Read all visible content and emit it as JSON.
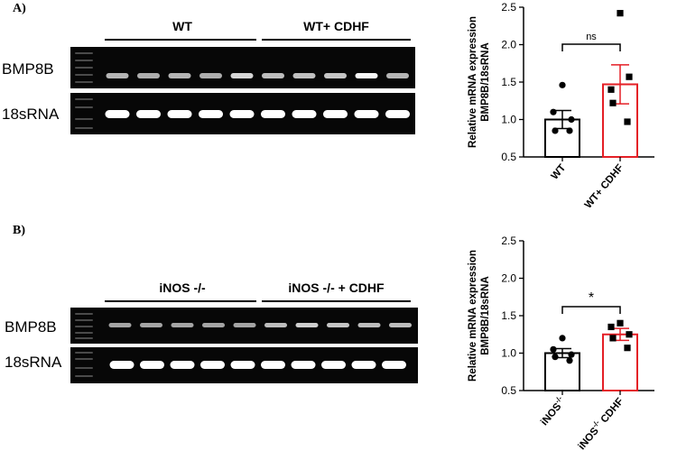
{
  "panels": [
    {
      "label": "A)",
      "groups": [
        "WT",
        "WT+ CDHF"
      ],
      "rows": [
        "BMP8B",
        "18sRNA"
      ],
      "bmp_intensity": [
        0.55,
        0.5,
        0.55,
        0.5,
        0.75,
        0.6,
        0.62,
        0.65,
        0.95,
        0.55
      ],
      "rna_intensity": [
        1,
        1,
        1,
        1,
        1,
        1,
        1,
        1,
        1,
        1
      ],
      "rna_lanes": 10
    },
    {
      "label": "B)",
      "groups": [
        "iNOS -/-",
        "iNOS -/- + CDHF"
      ],
      "rows": [
        "BMP8B",
        "18sRNA"
      ],
      "bmp_intensity": [
        0.45,
        0.45,
        0.45,
        0.45,
        0.45,
        0.6,
        0.7,
        0.65,
        0.6,
        0.6
      ],
      "rna_intensity": [
        1,
        1,
        1,
        1,
        1,
        1,
        1,
        1,
        1,
        1
      ],
      "rna_lanes": 10
    }
  ],
  "chart_data": [
    {
      "type": "bar",
      "ylabel_lines": [
        "Relative mRNA expression",
        "BMP8B/18sRNA"
      ],
      "ylim": [
        0.5,
        2.5
      ],
      "yticks": [
        "0.5",
        "1.0",
        "1.5",
        "2.0",
        "2.5"
      ],
      "tick_values": [
        0.5,
        1.0,
        1.5,
        2.0,
        2.5
      ],
      "categories": [
        "WT",
        "WT+ CDHF"
      ],
      "values": [
        1.0,
        1.47
      ],
      "errors": [
        0.12,
        0.26
      ],
      "points": [
        [
          1.46,
          1.1,
          1.0,
          0.85,
          0.85
        ],
        [
          2.42,
          1.4,
          1.57,
          1.22,
          0.97
        ]
      ],
      "significance": "ns",
      "colors": [
        "#000000",
        "#e41f26"
      ]
    },
    {
      "type": "bar",
      "ylabel_lines": [
        "Relative mRNA expression",
        "BMP8B/18sRNA"
      ],
      "ylim": [
        0.5,
        2.5
      ],
      "yticks": [
        "0.5",
        "1.0",
        "1.5",
        "2.0",
        "2.5"
      ],
      "tick_values": [
        0.5,
        1.0,
        1.5,
        2.0,
        2.5
      ],
      "categories": [
        "iNOS -/-",
        "iNOS -/- CDHF"
      ],
      "category_parts": [
        {
          "base": "iNOS",
          "sup": "-/-",
          "suffix": ""
        },
        {
          "base": "iNOS",
          "sup": "-/-",
          "suffix": " CDHF"
        }
      ],
      "values": [
        1.0,
        1.25
      ],
      "errors": [
        0.06,
        0.08
      ],
      "points": [
        [
          1.2,
          1.05,
          0.98,
          0.95,
          0.9
        ],
        [
          1.4,
          1.35,
          1.25,
          1.2,
          1.07
        ]
      ],
      "significance": "*",
      "colors": [
        "#000000",
        "#e41f26"
      ]
    }
  ]
}
